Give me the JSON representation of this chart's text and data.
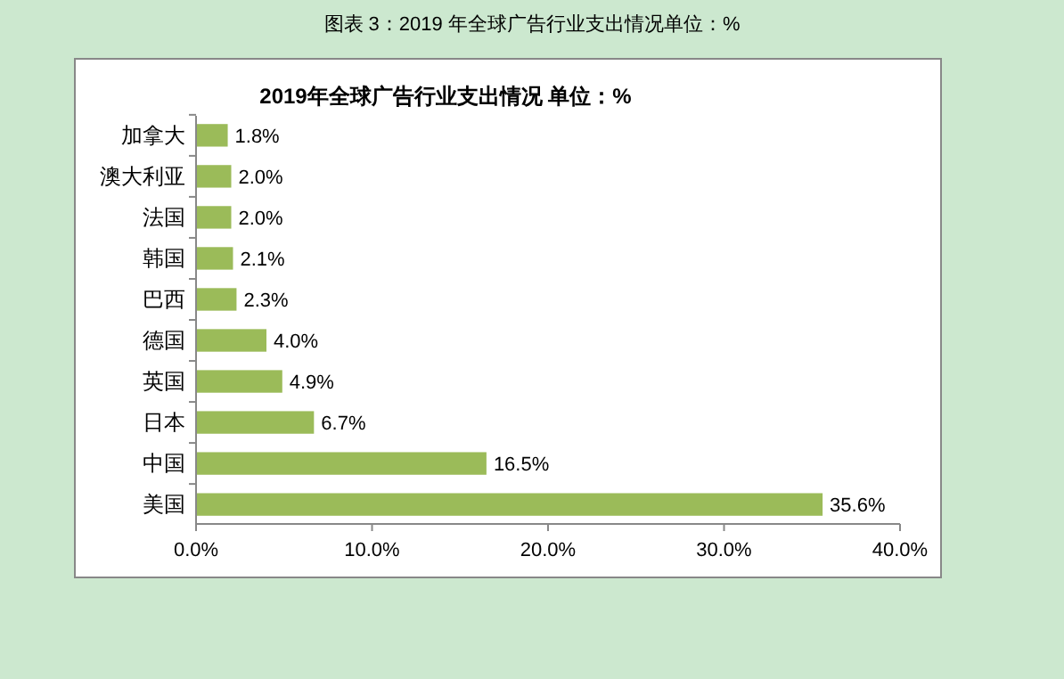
{
  "chart_data": {
    "type": "bar",
    "orientation": "horizontal",
    "title": "图表 3：2019 年全球广告行业支出情况单位：%",
    "subtitle": "2019年全球广告行业支出情况  单位：%",
    "categories": [
      "加拿大",
      "澳大利亚",
      "法国",
      "韩国",
      "巴西",
      "德国",
      "英国",
      "日本",
      "中国",
      "美国"
    ],
    "values": [
      1.8,
      2.0,
      2.0,
      2.1,
      2.3,
      4.0,
      4.9,
      6.7,
      16.5,
      35.6
    ],
    "value_labels": [
      "1.8%",
      "2.0%",
      "2.0%",
      "2.1%",
      "2.3%",
      "4.0%",
      "4.9%",
      "6.7%",
      "16.5%",
      "35.6%"
    ],
    "color": "#9bbb59",
    "xlim": [
      0,
      40
    ],
    "xticks": [
      {
        "value": 0,
        "label": "0.0%"
      },
      {
        "value": 10,
        "label": "10.0%"
      },
      {
        "value": 20,
        "label": "20.0%"
      },
      {
        "value": 30,
        "label": "30.0%"
      },
      {
        "value": 40,
        "label": "40.0%"
      }
    ],
    "grid": false
  }
}
